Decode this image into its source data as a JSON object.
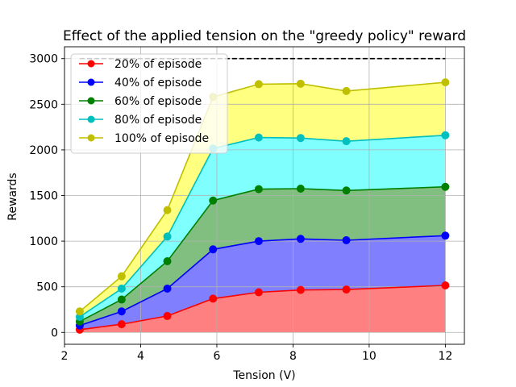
{
  "chart_data": {
    "type": "area",
    "title": "Effect of the applied tension on the \"greedy policy\" reward",
    "xlabel": "Tension (V)",
    "ylabel": "Rewards",
    "xlim": [
      2.0,
      12.5
    ],
    "ylim": [
      -130,
      3130
    ],
    "xticks": [
      2,
      4,
      6,
      8,
      10,
      12
    ],
    "yticks": [
      0,
      500,
      1000,
      1500,
      2000,
      2500,
      3000
    ],
    "grid": true,
    "legend_position": "top-left",
    "x": [
      2.4,
      3.5,
      4.7,
      5.9,
      7.1,
      8.2,
      9.4,
      12.0
    ],
    "reference_line": {
      "y": 3000,
      "x_range": [
        2.4,
        12.0
      ],
      "style": "dashed",
      "color": "#000000"
    },
    "series": [
      {
        "name": "20% of episode",
        "color": "#ff0000",
        "values": [
          30,
          90,
          180,
          370,
          440,
          465,
          470,
          515
        ]
      },
      {
        "name": "40% of episode",
        "color": "#0000ff",
        "values": [
          75,
          230,
          480,
          910,
          1000,
          1025,
          1010,
          1060
        ]
      },
      {
        "name": "60% of episode",
        "color": "#008000",
        "values": [
          120,
          360,
          780,
          1445,
          1570,
          1575,
          1555,
          1595
        ]
      },
      {
        "name": "80% of episode",
        "color": "#00bfbf",
        "values": [
          170,
          480,
          1050,
          2015,
          2135,
          2130,
          2095,
          2160
        ]
      },
      {
        "name": "100% of episode",
        "color": "#bfbf00",
        "values": [
          230,
          615,
          1340,
          2580,
          2720,
          2725,
          2645,
          2740
        ]
      }
    ],
    "fill_colors": [
      "#ff8080",
      "#8080ff",
      "#80bf80",
      "#80ffff",
      "#ffff80"
    ]
  }
}
